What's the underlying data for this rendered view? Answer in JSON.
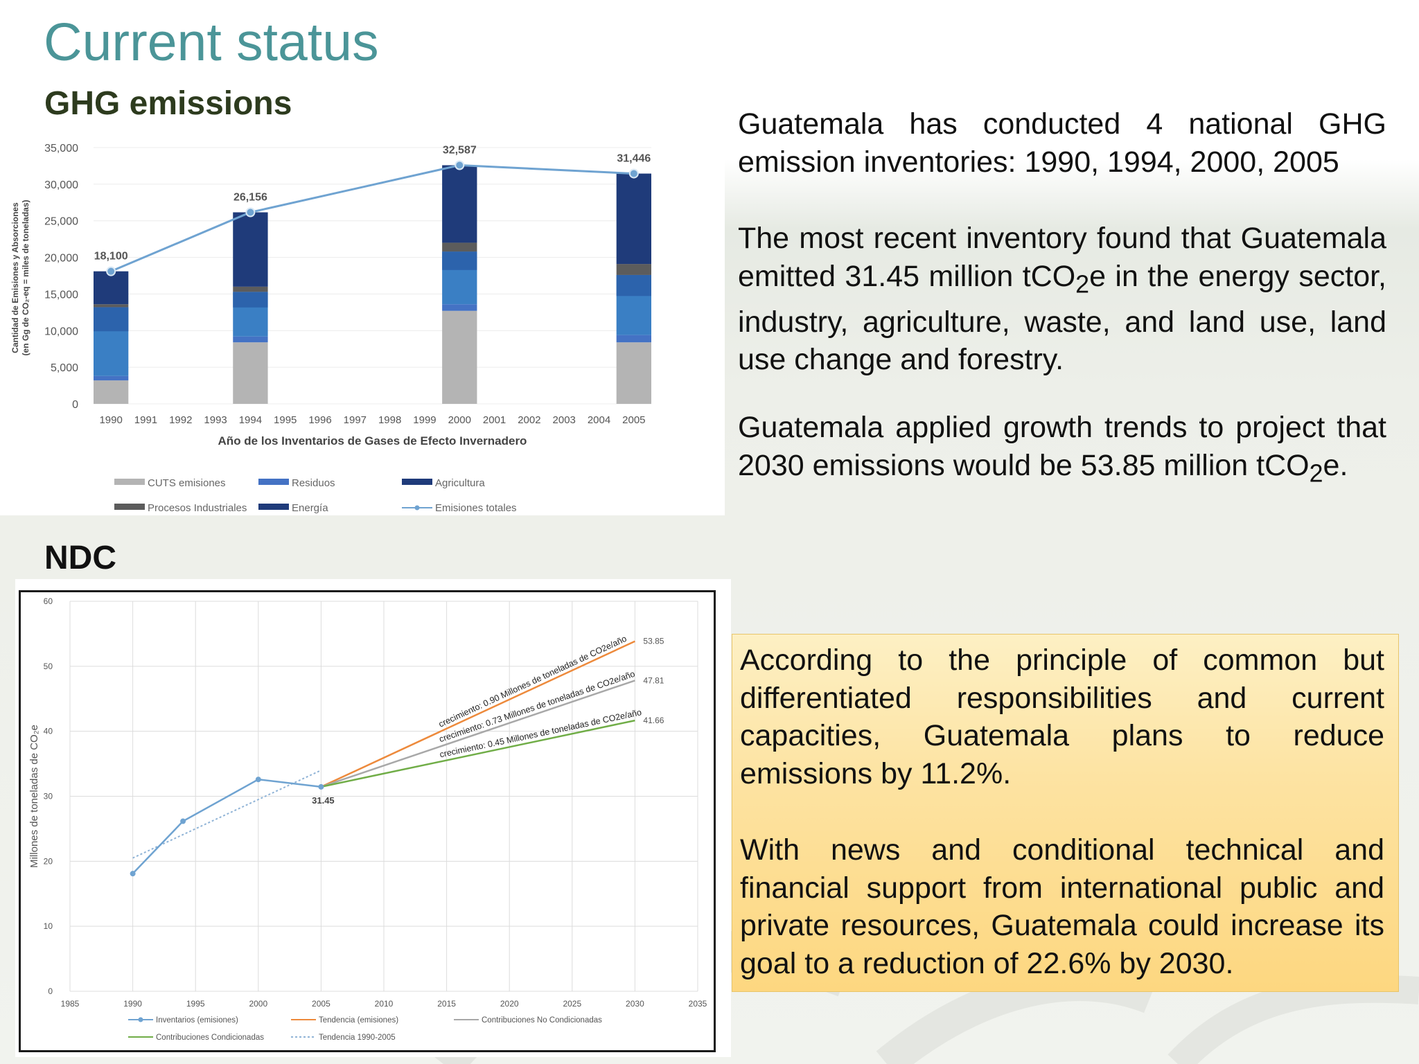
{
  "slide": {
    "title": "Current status",
    "ghg_heading": "GHG emissions",
    "ndc_heading": "NDC"
  },
  "text": {
    "p1": "Guatemala has conducted 4 national GHG emission inventories: 1990, 1994, 2000, 2005",
    "p2_before": "The most recent inventory found that Guatemala emitted 31.45 million tCO",
    "p2_sub": "2",
    "p2_after": "e in the energy sector, industry, agriculture, waste, and land use, land use change and forestry.",
    "p3_before": "Guatemala applied growth trends to project that 2030 emissions would be 53.85 million tCO",
    "p3_sub": "2",
    "p3_after": "e.",
    "p4": "According to the principle of common but differentiated responsibilities and current capacities, Guatemala plans to reduce emissions by 11.2%.",
    "p5": "With news and conditional technical and financial support from international public and private resources, Guatemala could increase its goal to a reduction of 22.6% by 2030."
  },
  "colors": {
    "title": "#4b9598",
    "cuts": "#b4b4b4",
    "procesos": "#5c5c5c",
    "residuos": "#4472c4",
    "energia": "#1f3b7a",
    "agricultura": "#2b6cb0",
    "total_line": "#6fa3d1",
    "tendencia": "#ed8a3c",
    "no_condicionadas": "#a8a8a8",
    "condicionadas": "#70ad47",
    "highlight_box": "#fde3a2"
  },
  "chart_data": [
    {
      "type": "bar",
      "stacked": true,
      "xlabel": "Año de los Inventarios de Gases de Efecto Invernadero",
      "ylabel_line1": "Cantidad de Emisiones y Absorciones",
      "ylabel_line2": "(en Gg de CO₂-eq = miles de toneladas)",
      "ylim": [
        0,
        35000
      ],
      "yticks": [
        "0",
        "5,000",
        "10,000",
        "15,000",
        "20,000",
        "25,000",
        "30,000",
        "35,000"
      ],
      "categories": [
        "1990",
        "1991",
        "1992",
        "1993",
        "1994",
        "1995",
        "1996",
        "1997",
        "1998",
        "1999",
        "2000",
        "2001",
        "2002",
        "2003",
        "2004",
        "2005"
      ],
      "series": [
        {
          "name": "CUTS emisiones",
          "values": [
            3200,
            null,
            null,
            null,
            8400,
            null,
            null,
            null,
            null,
            null,
            12700,
            null,
            null,
            null,
            null,
            8400
          ]
        },
        {
          "name": "Residuos",
          "values": [
            600,
            null,
            null,
            null,
            800,
            null,
            null,
            null,
            null,
            null,
            900,
            null,
            null,
            null,
            null,
            1000
          ]
        },
        {
          "name": "Agricultura",
          "values": [
            9400,
            null,
            null,
            null,
            6100,
            null,
            null,
            null,
            null,
            null,
            7200,
            null,
            null,
            null,
            null,
            8200
          ]
        },
        {
          "name": "Procesos Industriales",
          "values": [
            400,
            null,
            null,
            null,
            700,
            null,
            null,
            null,
            null,
            null,
            1200,
            null,
            null,
            null,
            null,
            1500
          ]
        },
        {
          "name": "Energía",
          "values": [
            4500,
            null,
            null,
            null,
            10156,
            null,
            null,
            null,
            null,
            null,
            10587,
            null,
            null,
            null,
            null,
            12346
          ]
        }
      ],
      "line_series": {
        "name": "Emisiones totales",
        "years": [
          "1990",
          "1994",
          "2000",
          "2005"
        ],
        "values": [
          18100,
          26156,
          32587,
          31446
        ]
      },
      "data_labels": [
        "18,100",
        "26,156",
        "32,587",
        "31,446"
      ],
      "legend": [
        "CUTS emisiones",
        "Residuos",
        "Agricultura",
        "Procesos Industriales",
        "Energía",
        "Emisiones totales"
      ],
      "legend_position": "bottom"
    },
    {
      "type": "line",
      "ylabel": "Millones de toneladas de CO₂e",
      "xlim": [
        1985,
        2035
      ],
      "ylim": [
        0,
        60
      ],
      "xticks": [
        "1985",
        "1990",
        "1995",
        "2000",
        "2005",
        "2010",
        "2015",
        "2020",
        "2025",
        "2030",
        "2035"
      ],
      "yticks": [
        "0",
        "10",
        "20",
        "30",
        "40",
        "50",
        "60"
      ],
      "grid": true,
      "series": [
        {
          "name": "Inventarios (emisiones)",
          "x": [
            1990,
            1994,
            2000,
            2005
          ],
          "y": [
            18.1,
            26.16,
            32.59,
            31.45
          ]
        },
        {
          "name": "Tendencia (emisiones)",
          "x": [
            2005,
            2030
          ],
          "y": [
            31.45,
            53.85
          ]
        },
        {
          "name": "Contribuciones No Condicionadas",
          "x": [
            2005,
            2030
          ],
          "y": [
            31.45,
            47.81
          ]
        },
        {
          "name": "Contribuciones Condicionadas",
          "x": [
            2005,
            2030
          ],
          "y": [
            31.45,
            41.66
          ]
        },
        {
          "name": "Tendencia 1990-2005",
          "x": [
            1990,
            2005
          ],
          "y": [
            20.5,
            34.0
          ]
        }
      ],
      "annotations": [
        {
          "text": "crecimiento: 0.90 Millones de toneladas de CO2e/año"
        },
        {
          "text": "crecimiento: 0.73 Millones de toneladas de CO2e/año"
        },
        {
          "text": "crecimiento: 0.45 Millones de toneladas de CO2e/año"
        }
      ],
      "data_labels": [
        "31.45",
        "53.85",
        "47.81",
        "41.66"
      ],
      "legend": [
        "Inventarios (emisiones)",
        "Tendencia (emisiones)",
        "Contribuciones No Condicionadas",
        "Contribuciones Condicionadas",
        "Tendencia 1990-2005"
      ],
      "legend_position": "bottom"
    }
  ]
}
